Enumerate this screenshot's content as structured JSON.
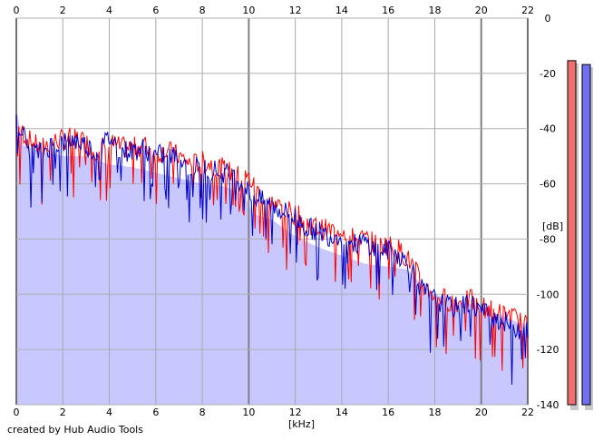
{
  "credit": "created by Hub Audio Tools",
  "chart_data": {
    "type": "line",
    "xlabel": "[kHz]",
    "ylabel": "[dB]",
    "xlim": [
      0,
      22
    ],
    "ylim": [
      -140,
      0
    ],
    "x_ticks": [
      "0",
      "2",
      "4",
      "6",
      "8",
      "10",
      "12",
      "14",
      "16",
      "18",
      "20",
      "22"
    ],
    "x_tick_values": [
      0,
      2,
      4,
      6,
      8,
      10,
      12,
      14,
      16,
      18,
      20,
      22
    ],
    "y_ticks": [
      "0",
      "-20",
      "-40",
      "-60",
      "-80",
      "-100",
      "-120",
      "-140"
    ],
    "y_tick_values": [
      0,
      -20,
      -40,
      -60,
      -80,
      -100,
      -120,
      -140
    ],
    "grid": true,
    "envelope": {
      "color": "#c8c8ff",
      "x": [
        0,
        0.3,
        1.0,
        2.0,
        3.0,
        4.0,
        5.0,
        6.0,
        7.0,
        8.0,
        9.0,
        9.8,
        10.2,
        11.0,
        12.0,
        13.0,
        14.0,
        15.0,
        16.0,
        16.8,
        17.5,
        18.0,
        19.0,
        20.0,
        20.5,
        21.0,
        21.5,
        22.0
      ],
      "values": [
        -33,
        -46,
        -48,
        -50,
        -50,
        -53,
        -54,
        -56,
        -58,
        -60,
        -61,
        -64,
        -71,
        -73,
        -79,
        -83,
        -86,
        -89,
        -90,
        -91,
        -97,
        -100,
        -103,
        -104,
        -107,
        -108,
        -110,
        -111
      ]
    },
    "series": [
      {
        "color": "#ff0000",
        "x": [
          0,
          0.5,
          1.0,
          1.5,
          2.0,
          2.5,
          3.0,
          3.5,
          4.0,
          4.5,
          5.0,
          5.5,
          6.0,
          6.5,
          7.0,
          7.5,
          8.0,
          8.5,
          9.0,
          9.5,
          10.0,
          10.5,
          11.0,
          11.5,
          12.0,
          12.5,
          13.0,
          13.5,
          14.0,
          14.5,
          15.0,
          15.5,
          16.0,
          16.5,
          17.0,
          17.5,
          18.0,
          18.5,
          19.0,
          19.5,
          20.0,
          20.5,
          21.0,
          21.5,
          22.0
        ],
        "values": [
          -38,
          -44,
          -47,
          -45,
          -44,
          -43,
          -45,
          -48,
          -45,
          -47,
          -47,
          -46,
          -49,
          -48,
          -50,
          -53,
          -52,
          -53,
          -55,
          -57,
          -58,
          -64,
          -67,
          -69,
          -71,
          -74,
          -76,
          -77,
          -76,
          -80,
          -80,
          -82,
          -82,
          -84,
          -89,
          -97,
          -100,
          -102,
          -103,
          -102,
          -104,
          -106,
          -107,
          -109,
          -112
        ]
      },
      {
        "color": "#0000cc",
        "x": [
          0,
          0.5,
          1.0,
          1.5,
          2.0,
          2.5,
          3.0,
          3.5,
          4.0,
          4.5,
          5.0,
          5.5,
          6.0,
          6.5,
          7.0,
          7.5,
          8.0,
          8.5,
          9.0,
          9.5,
          10.0,
          10.5,
          11.0,
          11.5,
          12.0,
          12.5,
          13.0,
          13.5,
          14.0,
          14.5,
          15.0,
          15.5,
          16.0,
          16.5,
          17.0,
          17.5,
          18.0,
          18.5,
          19.0,
          19.5,
          20.0,
          20.5,
          21.0,
          21.5,
          22.0
        ],
        "values": [
          -35,
          -47,
          -49,
          -46,
          -45,
          -44,
          -46,
          -49,
          -43,
          -48,
          -48,
          -47,
          -50,
          -49,
          -51,
          -54,
          -54,
          -55,
          -56,
          -58,
          -63,
          -66,
          -68,
          -70,
          -72,
          -76,
          -77,
          -79,
          -78,
          -82,
          -81,
          -84,
          -84,
          -86,
          -91,
          -99,
          -102,
          -104,
          -105,
          -103,
          -106,
          -108,
          -110,
          -112,
          -114
        ]
      }
    ]
  },
  "meters": [
    {
      "color": "#f07070",
      "level": 0.89
    },
    {
      "color": "#7070f0",
      "level": 0.88
    }
  ]
}
